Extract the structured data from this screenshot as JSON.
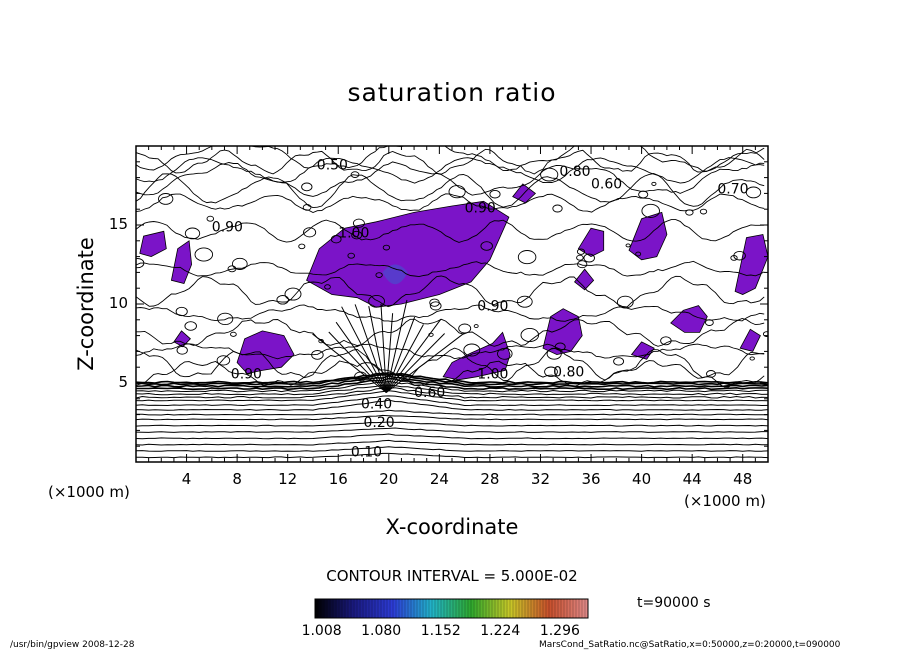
{
  "chart_data": {
    "type": "contour",
    "title": "saturation ratio",
    "xlabel": "X-coordinate",
    "ylabel": "Z-coordinate",
    "x_unit": "(×1000 m)",
    "z_unit": "(×1000 m)",
    "xlim": [
      0,
      50
    ],
    "ylim": [
      0,
      20
    ],
    "x_ticks": [
      "4",
      "8",
      "12",
      "16",
      "20",
      "24",
      "28",
      "32",
      "36",
      "40",
      "44",
      "48"
    ],
    "y_ticks": [
      "5",
      "10",
      "15"
    ],
    "contour_labels": [
      "0.10",
      "0.20",
      "0.40",
      "0.50",
      "0.60",
      "0.70",
      "0.80",
      "0.90",
      "1.00"
    ],
    "contour_interval": "CONTOUR INTERVAL = 5.000E-02",
    "colorbar_ticks": [
      "1.008",
      "1.080",
      "1.152",
      "1.224",
      "1.296"
    ],
    "colorbar_range": [
      1.0,
      1.33
    ],
    "time": "t=90000 s",
    "colors": {
      "supersaturated_fill": "#7b14c8",
      "colormap": [
        "#000000",
        "#1a1a80",
        "#2d3cd6",
        "#22b4c8",
        "#2ea82e",
        "#c8c828",
        "#c8502c",
        "#e08a8a"
      ]
    }
  },
  "footer": {
    "program": "/usr/bin/gpview   2008-12-28",
    "source": "MarsCond_SatRatio.nc@SatRatio,x=0:50000,z=0:20000,t=090000"
  }
}
